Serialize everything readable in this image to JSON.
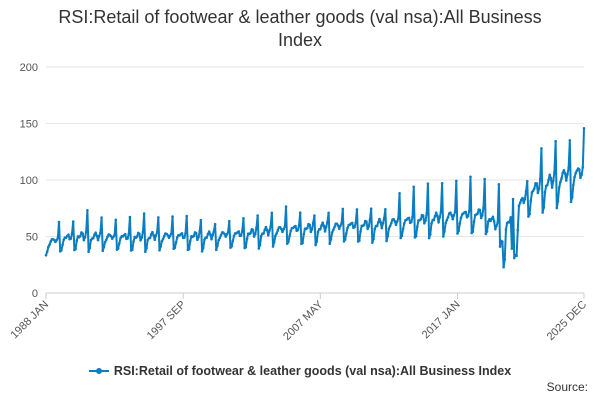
{
  "chart_data": {
    "type": "line",
    "title": "RSI:Retail of footwear & leather goods (val nsa):All Business Index",
    "xlabel": "",
    "ylabel": "",
    "ylim": [
      0,
      200
    ],
    "yticks": [
      0,
      50,
      100,
      150,
      200
    ],
    "x_range": [
      "1988 JAN",
      "2025 DEC"
    ],
    "xticks": [
      {
        "label": "1988 JAN",
        "year": 1988,
        "month": 1
      },
      {
        "label": "1997 SEP",
        "year": 1997,
        "month": 9
      },
      {
        "label": "2007 MAY",
        "year": 2007,
        "month": 5
      },
      {
        "label": "2017 JAN",
        "year": 2017,
        "month": 1
      },
      {
        "label": "2025 DEC",
        "year": 2025,
        "month": 12
      }
    ],
    "grid": true,
    "legend": "bottom",
    "series": [
      {
        "name": "RSI:Retail of footwear & leather goods (val nsa):All Business Index",
        "color": "#0b7dc0",
        "annual_average": [
          {
            "year": 1988,
            "value": 44
          },
          {
            "year": 1990,
            "value": 50
          },
          {
            "year": 1993,
            "value": 49
          },
          {
            "year": 1996,
            "value": 50
          },
          {
            "year": 1999,
            "value": 50
          },
          {
            "year": 2002,
            "value": 52
          },
          {
            "year": 2005,
            "value": 56
          },
          {
            "year": 2008,
            "value": 58
          },
          {
            "year": 2011,
            "value": 60
          },
          {
            "year": 2014,
            "value": 64
          },
          {
            "year": 2017,
            "value": 68
          },
          {
            "year": 2019,
            "value": 70
          },
          {
            "year": 2020,
            "value": 55
          },
          {
            "year": 2021,
            "value": 70
          },
          {
            "year": 2022,
            "value": 88
          },
          {
            "year": 2023,
            "value": 95
          },
          {
            "year": 2024,
            "value": 100
          },
          {
            "year": 2025,
            "value": 105
          }
        ],
        "december_peaks": [
          {
            "year": 1988,
            "value": 63
          },
          {
            "year": 1989,
            "value": 62
          },
          {
            "year": 1990,
            "value": 73
          },
          {
            "year": 1991,
            "value": 68
          },
          {
            "year": 1992,
            "value": 65
          },
          {
            "year": 1993,
            "value": 66
          },
          {
            "year": 1994,
            "value": 70
          },
          {
            "year": 1995,
            "value": 68
          },
          {
            "year": 1996,
            "value": 68
          },
          {
            "year": 1997,
            "value": 67
          },
          {
            "year": 1998,
            "value": 64
          },
          {
            "year": 1999,
            "value": 62
          },
          {
            "year": 2000,
            "value": 64
          },
          {
            "year": 2001,
            "value": 65
          },
          {
            "year": 2002,
            "value": 68
          },
          {
            "year": 2003,
            "value": 72
          },
          {
            "year": 2004,
            "value": 77
          },
          {
            "year": 2005,
            "value": 70
          },
          {
            "year": 2006,
            "value": 68
          },
          {
            "year": 2007,
            "value": 72
          },
          {
            "year": 2008,
            "value": 75
          },
          {
            "year": 2009,
            "value": 73
          },
          {
            "year": 2010,
            "value": 74
          },
          {
            "year": 2011,
            "value": 75
          },
          {
            "year": 2012,
            "value": 89
          },
          {
            "year": 2013,
            "value": 93
          },
          {
            "year": 2014,
            "value": 96
          },
          {
            "year": 2015,
            "value": 98
          },
          {
            "year": 2016,
            "value": 100
          },
          {
            "year": 2017,
            "value": 102
          },
          {
            "year": 2018,
            "value": 100
          },
          {
            "year": 2019,
            "value": 97
          },
          {
            "year": 2020,
            "value": 84
          },
          {
            "year": 2021,
            "value": 98
          },
          {
            "year": 2022,
            "value": 127
          },
          {
            "year": 2023,
            "value": 135
          },
          {
            "year": 2024,
            "value": 136
          },
          {
            "year": 2025,
            "value": 145
          }
        ],
        "notable_points": [
          {
            "date": "2020 APR",
            "value": 24
          },
          {
            "date": "2021 JAN",
            "value": 30
          },
          {
            "date": "2025 DEC",
            "value": 145
          }
        ]
      }
    ]
  },
  "legend_label": "RSI:Retail of footwear & leather goods (val nsa):All Business Index",
  "source_label": "Source:"
}
